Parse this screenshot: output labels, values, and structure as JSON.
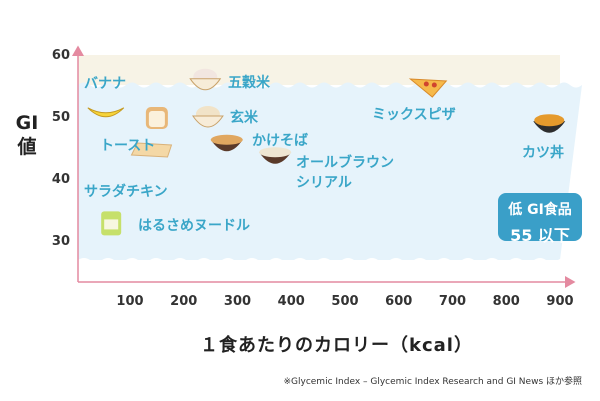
{
  "chart_data": {
    "type": "scatter",
    "ylabel": "GI値",
    "xlabel": "１食あたりのカロリー（kcal）",
    "xlim": [
      0,
      900
    ],
    "ylim": [
      25,
      60
    ],
    "x_ticks": [
      100,
      200,
      300,
      400,
      500,
      600,
      700,
      800,
      900
    ],
    "y_ticks": [
      30,
      40,
      50,
      60
    ],
    "points": [
      {
        "name": "バナナ",
        "x": 55,
        "y": 51,
        "icon": "banana-icon"
      },
      {
        "name": "トースト",
        "x": 150,
        "y": 50,
        "icon": "toast-icon"
      },
      {
        "name": "サラダチキン",
        "x": 140,
        "y": 45,
        "icon": "salad-chicken-icon"
      },
      {
        "name": "はるさめヌードル",
        "x": 65,
        "y": 33,
        "icon": "noodle-cup-icon"
      },
      {
        "name": "五穀米",
        "x": 240,
        "y": 56,
        "icon": "grain-rice-icon"
      },
      {
        "name": "玄米",
        "x": 245,
        "y": 50,
        "icon": "brown-rice-icon"
      },
      {
        "name": "かけそば",
        "x": 280,
        "y": 46,
        "icon": "soba-icon"
      },
      {
        "name": "オールブラウンシリアル",
        "x": 370,
        "y": 44,
        "icon": "cereal-icon"
      },
      {
        "name": "ミックスピザ",
        "x": 655,
        "y": 55,
        "icon": "pizza-icon"
      },
      {
        "name": "カツ丼",
        "x": 880,
        "y": 49,
        "icon": "katsudon-icon"
      }
    ],
    "annotation": {
      "line1": "低 GI食品",
      "line2": "55 以下"
    },
    "note": "※Glycemic Index – Glycemic Index Research and GI News ほか参照",
    "colors": {
      "background": "#e6f3fb",
      "accent": "#3a9fc8",
      "axis": "#e48aa0",
      "label": "#3aa6c8"
    }
  }
}
